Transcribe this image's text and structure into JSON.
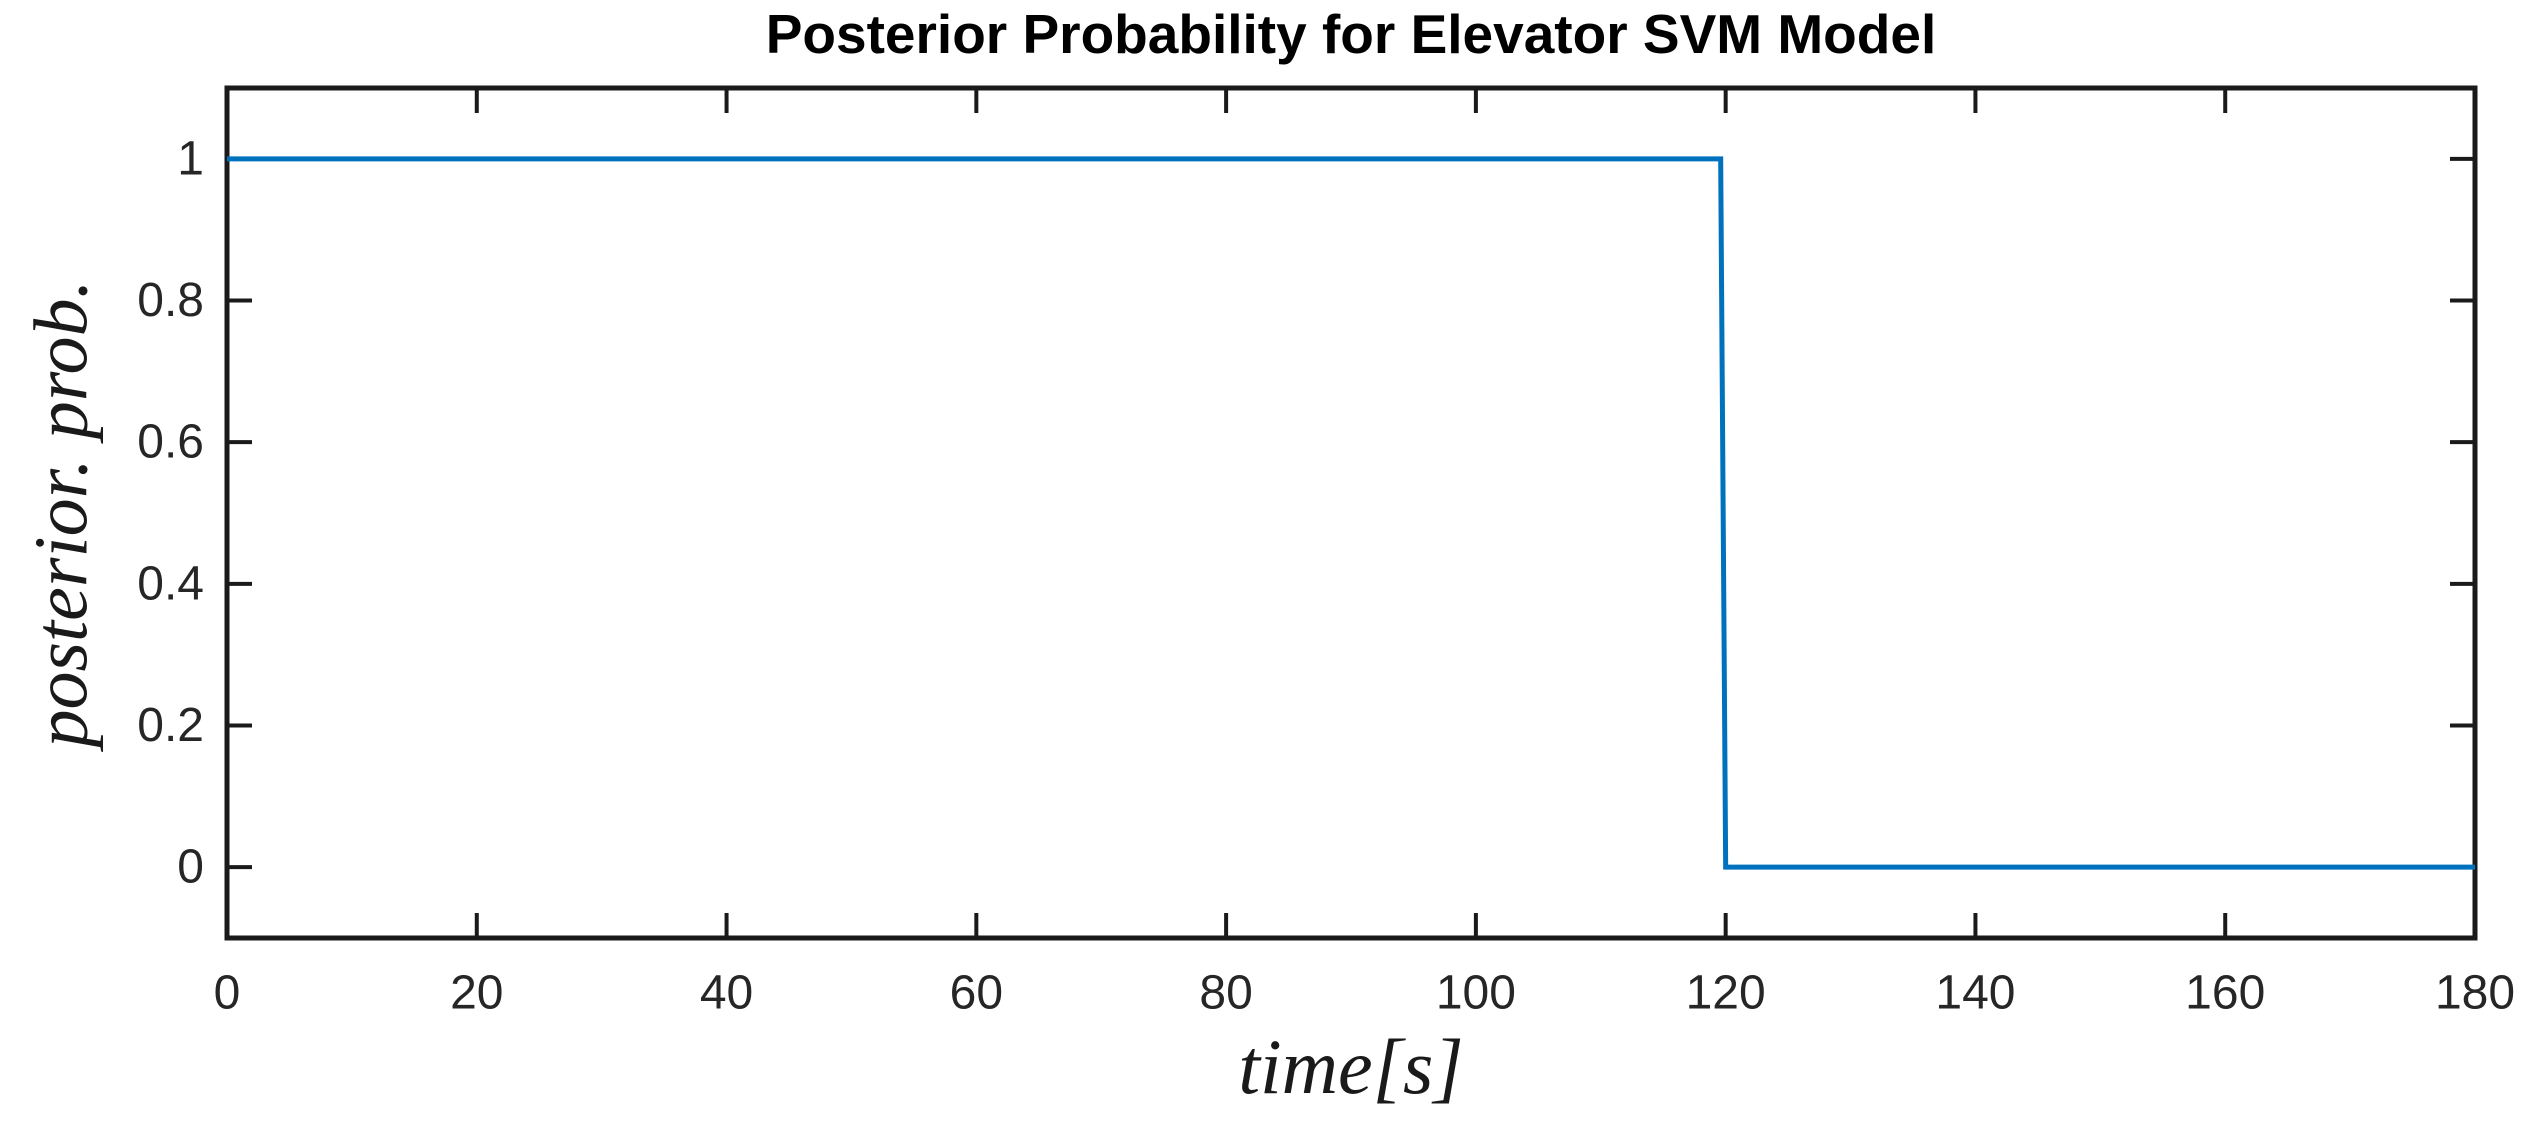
{
  "chart_data": {
    "type": "line",
    "subtype": "step",
    "title": "Posterior Probability for Elevator SVM Model",
    "xlabel": "time[s]",
    "ylabel": "posterior. prob.",
    "xlim": [
      0,
      180
    ],
    "ylim": [
      -0.1,
      1.1
    ],
    "xticks": [
      0,
      20,
      40,
      60,
      80,
      100,
      120,
      140,
      160,
      180
    ],
    "yticks": [
      0,
      0.2,
      0.4,
      0.6,
      0.8,
      1
    ],
    "grid": false,
    "legend": null,
    "series": [
      {
        "name": "posterior probability",
        "color": "#0072BD",
        "x": [
          0,
          119.6,
          120,
          180
        ],
        "y": [
          1,
          1,
          0,
          0
        ]
      }
    ]
  },
  "style": {
    "axis_color": "#1a1a1a",
    "tick_label_color": "#262626",
    "title_color": "#000000",
    "background": "#ffffff"
  }
}
